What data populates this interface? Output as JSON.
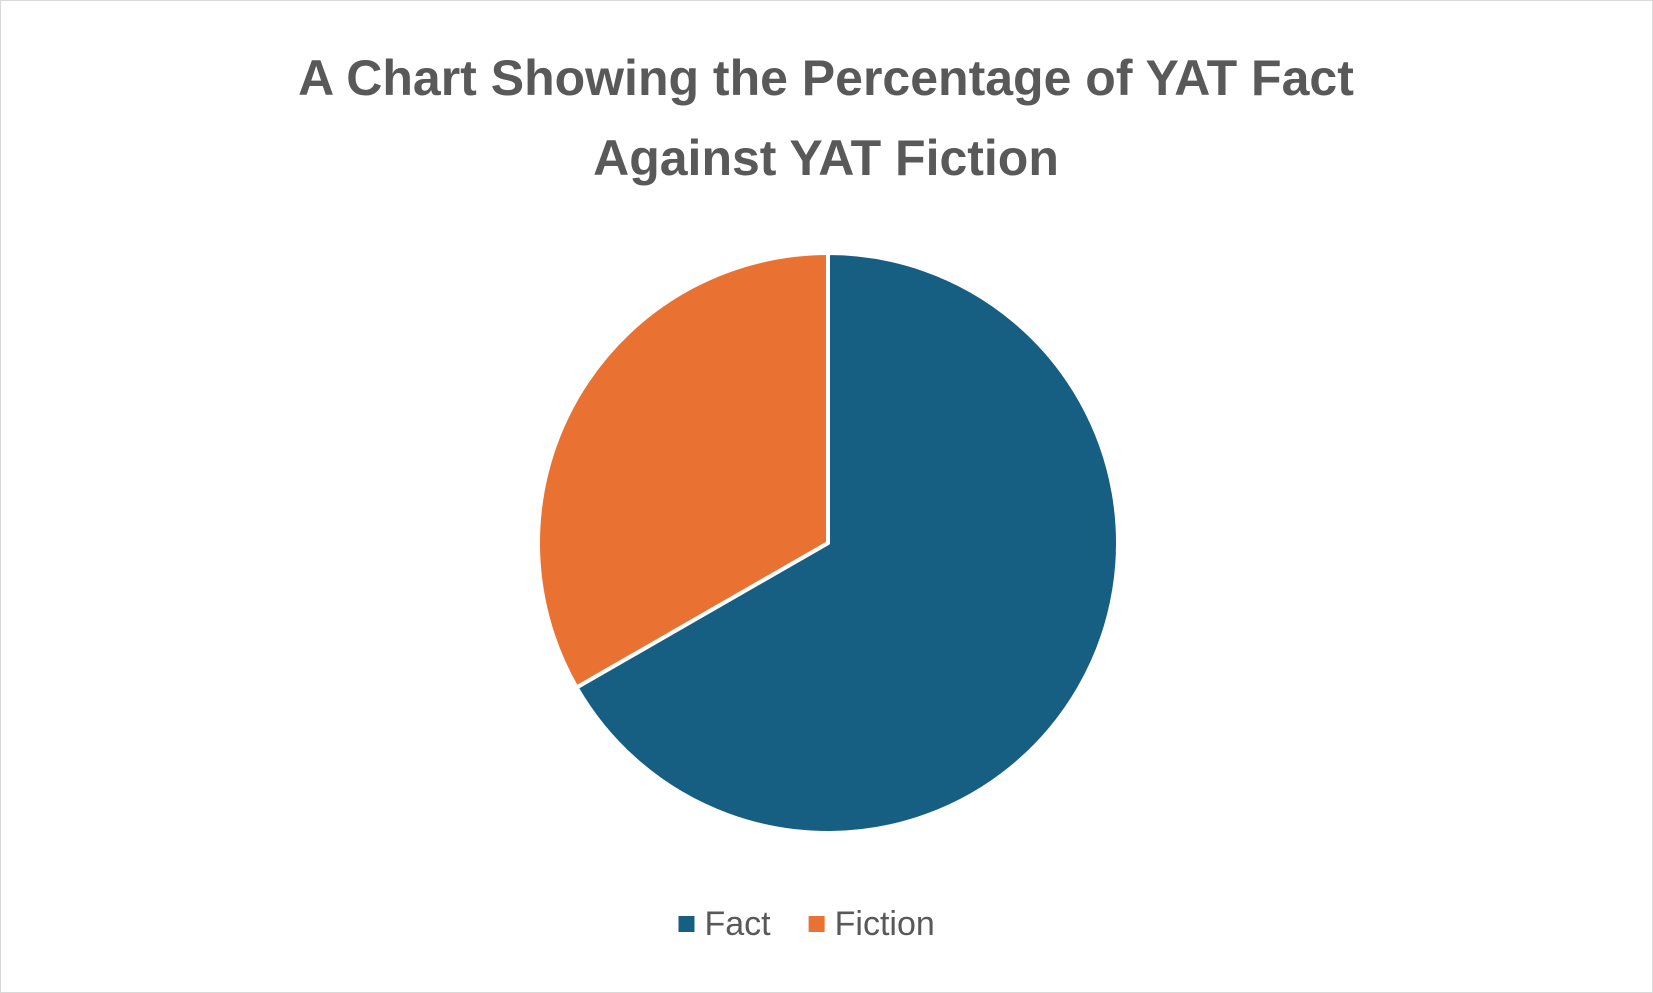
{
  "chart_data": {
    "type": "pie",
    "title": "A Chart Showing the Percentage of YAT Fact Against YAT Fiction",
    "categories": [
      "Fact",
      "Fiction"
    ],
    "values": [
      66.7,
      33.3
    ],
    "colors": [
      "#175f82",
      "#e97132"
    ],
    "legend": "bottom"
  }
}
